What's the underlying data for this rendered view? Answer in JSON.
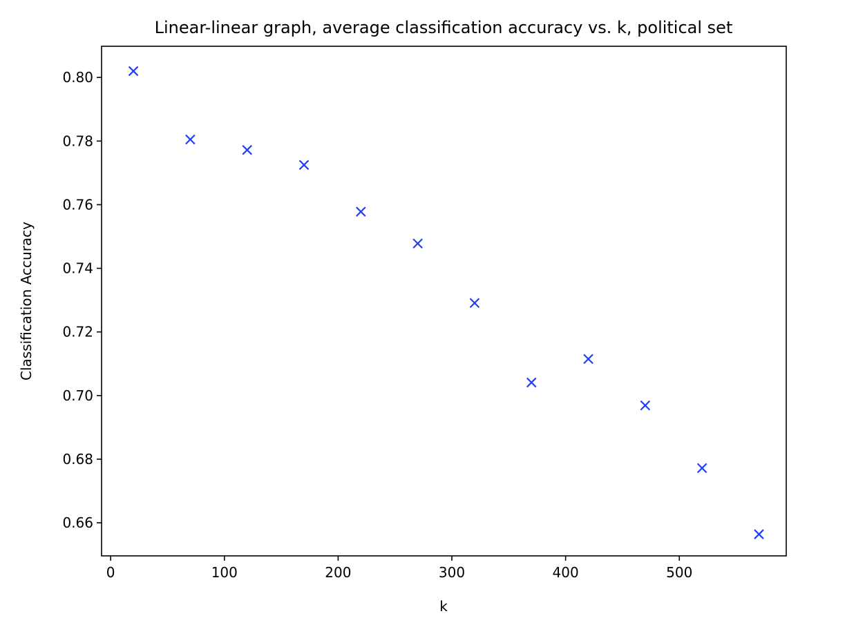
{
  "chart_data": {
    "type": "scatter",
    "title": "Linear-linear graph, average classification accuracy vs. k, political set",
    "xlabel": "k",
    "ylabel": "Classification Accuracy",
    "xlim": [
      -8,
      594
    ],
    "ylim": [
      0.6496,
      0.8098
    ],
    "xticks": [
      0,
      100,
      200,
      300,
      400,
      500
    ],
    "xtick_labels": [
      "0",
      "100",
      "200",
      "300",
      "400",
      "500"
    ],
    "yticks": [
      0.66,
      0.68,
      0.7,
      0.72,
      0.74,
      0.76,
      0.78,
      0.8
    ],
    "ytick_labels": [
      "0.66",
      "0.68",
      "0.70",
      "0.72",
      "0.74",
      "0.76",
      "0.78",
      "0.80"
    ],
    "grid": false,
    "marker": "x",
    "marker_color": "#1f3cff",
    "series": [
      {
        "x": [
          20,
          70,
          120,
          170,
          220,
          270,
          320,
          370,
          420,
          470,
          520,
          570
        ],
        "y": [
          0.802,
          0.7805,
          0.7772,
          0.7725,
          0.7578,
          0.7478,
          0.7291,
          0.7041,
          0.7115,
          0.6969,
          0.6772,
          0.6564
        ]
      }
    ]
  }
}
